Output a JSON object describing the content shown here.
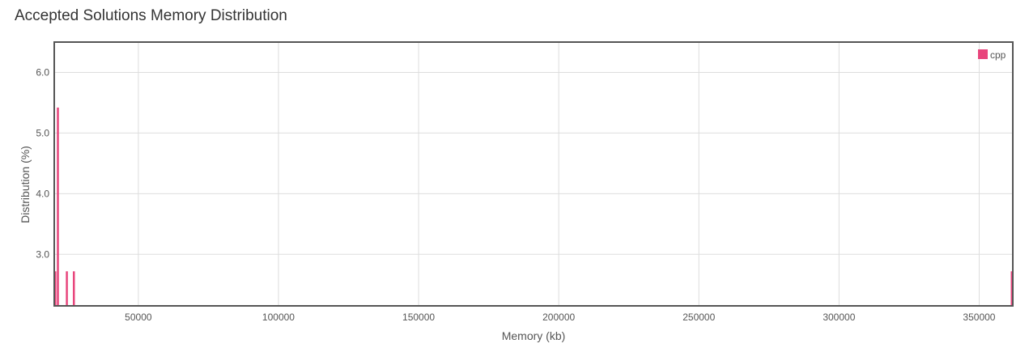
{
  "chart_data": {
    "type": "bar",
    "title": "Accepted Solutions Memory Distribution",
    "xlabel": "Memory (kb)",
    "ylabel": "Distribution (%)",
    "xlim": [
      20000,
      362000
    ],
    "ylim": [
      2.15,
      6.5
    ],
    "x_ticks": [
      50000,
      100000,
      150000,
      200000,
      250000,
      300000,
      350000
    ],
    "x_tick_labels": [
      "50000",
      "100000",
      "150000",
      "200000",
      "250000",
      "300000",
      "350000"
    ],
    "y_ticks": [
      3.0,
      4.0,
      5.0,
      6.0
    ],
    "y_tick_labels": [
      "3.0",
      "4.0",
      "5.0",
      "6.0"
    ],
    "grid": true,
    "legend": {
      "position": "top-right"
    },
    "series": [
      {
        "name": "cpp",
        "color": "#e8457c",
        "x": [
          20300,
          21300,
          24500,
          27000,
          361800
        ],
        "values": [
          2.72,
          5.42,
          2.72,
          2.72,
          2.72
        ]
      }
    ]
  }
}
